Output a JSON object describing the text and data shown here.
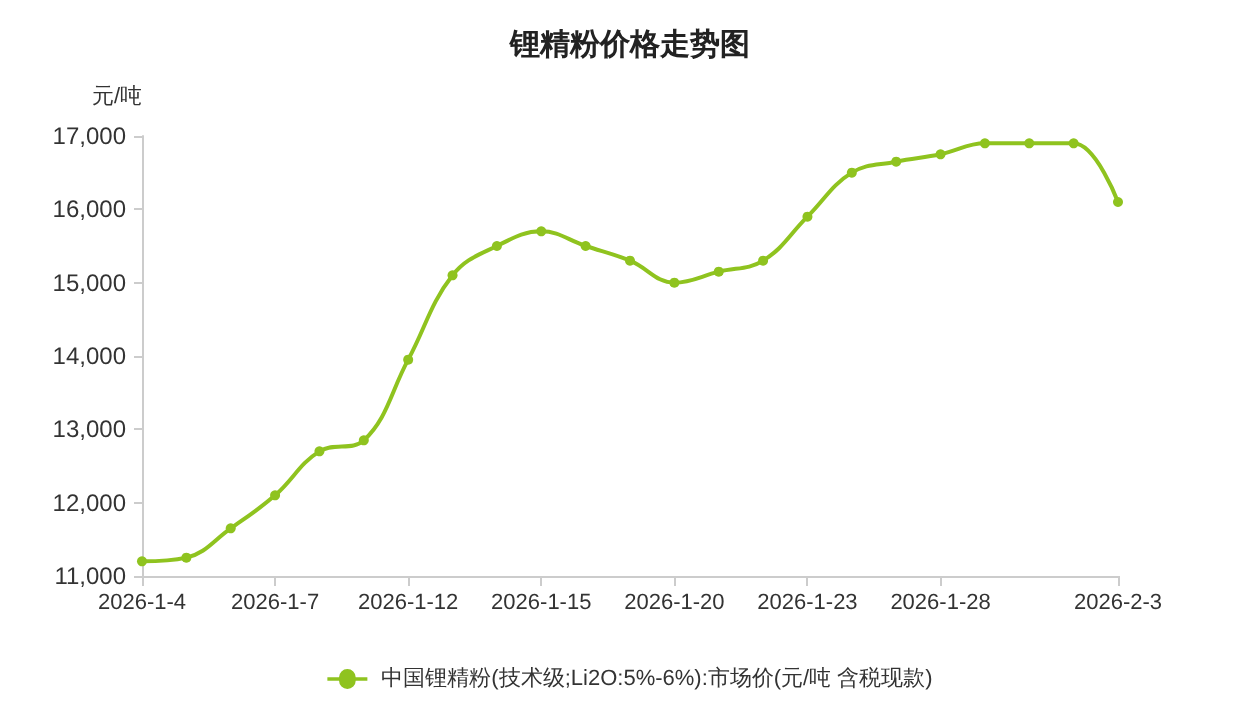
{
  "chart_data": {
    "type": "line",
    "title": "锂精粉价格走势图",
    "ylabel": "元/吨",
    "categories": [
      "2026-1-4",
      null,
      null,
      "2026-1-7",
      null,
      null,
      "2026-1-12",
      null,
      null,
      "2026-1-15",
      null,
      null,
      "2026-1-20",
      null,
      null,
      "2026-1-23",
      null,
      null,
      "2026-1-28",
      null,
      null,
      null,
      "2026-2-3"
    ],
    "series": [
      {
        "name": "中国锂精粉(技术级;Li2O:5%-6%):市场价(元/吨 含税现款)",
        "color": "#8fc31f",
        "values": [
          11200,
          11250,
          11650,
          12100,
          12700,
          12850,
          13950,
          15100,
          15500,
          15700,
          15500,
          15300,
          15000,
          15150,
          15300,
          15900,
          16500,
          16650,
          16750,
          16900,
          16900,
          16900,
          16100
        ]
      }
    ],
    "ylim": [
      11000,
      17000
    ],
    "yticks": [
      {
        "value": 11000,
        "label": "11,000"
      },
      {
        "value": 12000,
        "label": "12,000"
      },
      {
        "value": 13000,
        "label": "13,000"
      },
      {
        "value": 14000,
        "label": "14,000"
      },
      {
        "value": 15000,
        "label": "15,000"
      },
      {
        "value": 16000,
        "label": "16,000"
      },
      {
        "value": 17000,
        "label": "17,000"
      }
    ],
    "grid": false,
    "legend": "bottom",
    "marker": "circle",
    "line_style": "solid"
  }
}
